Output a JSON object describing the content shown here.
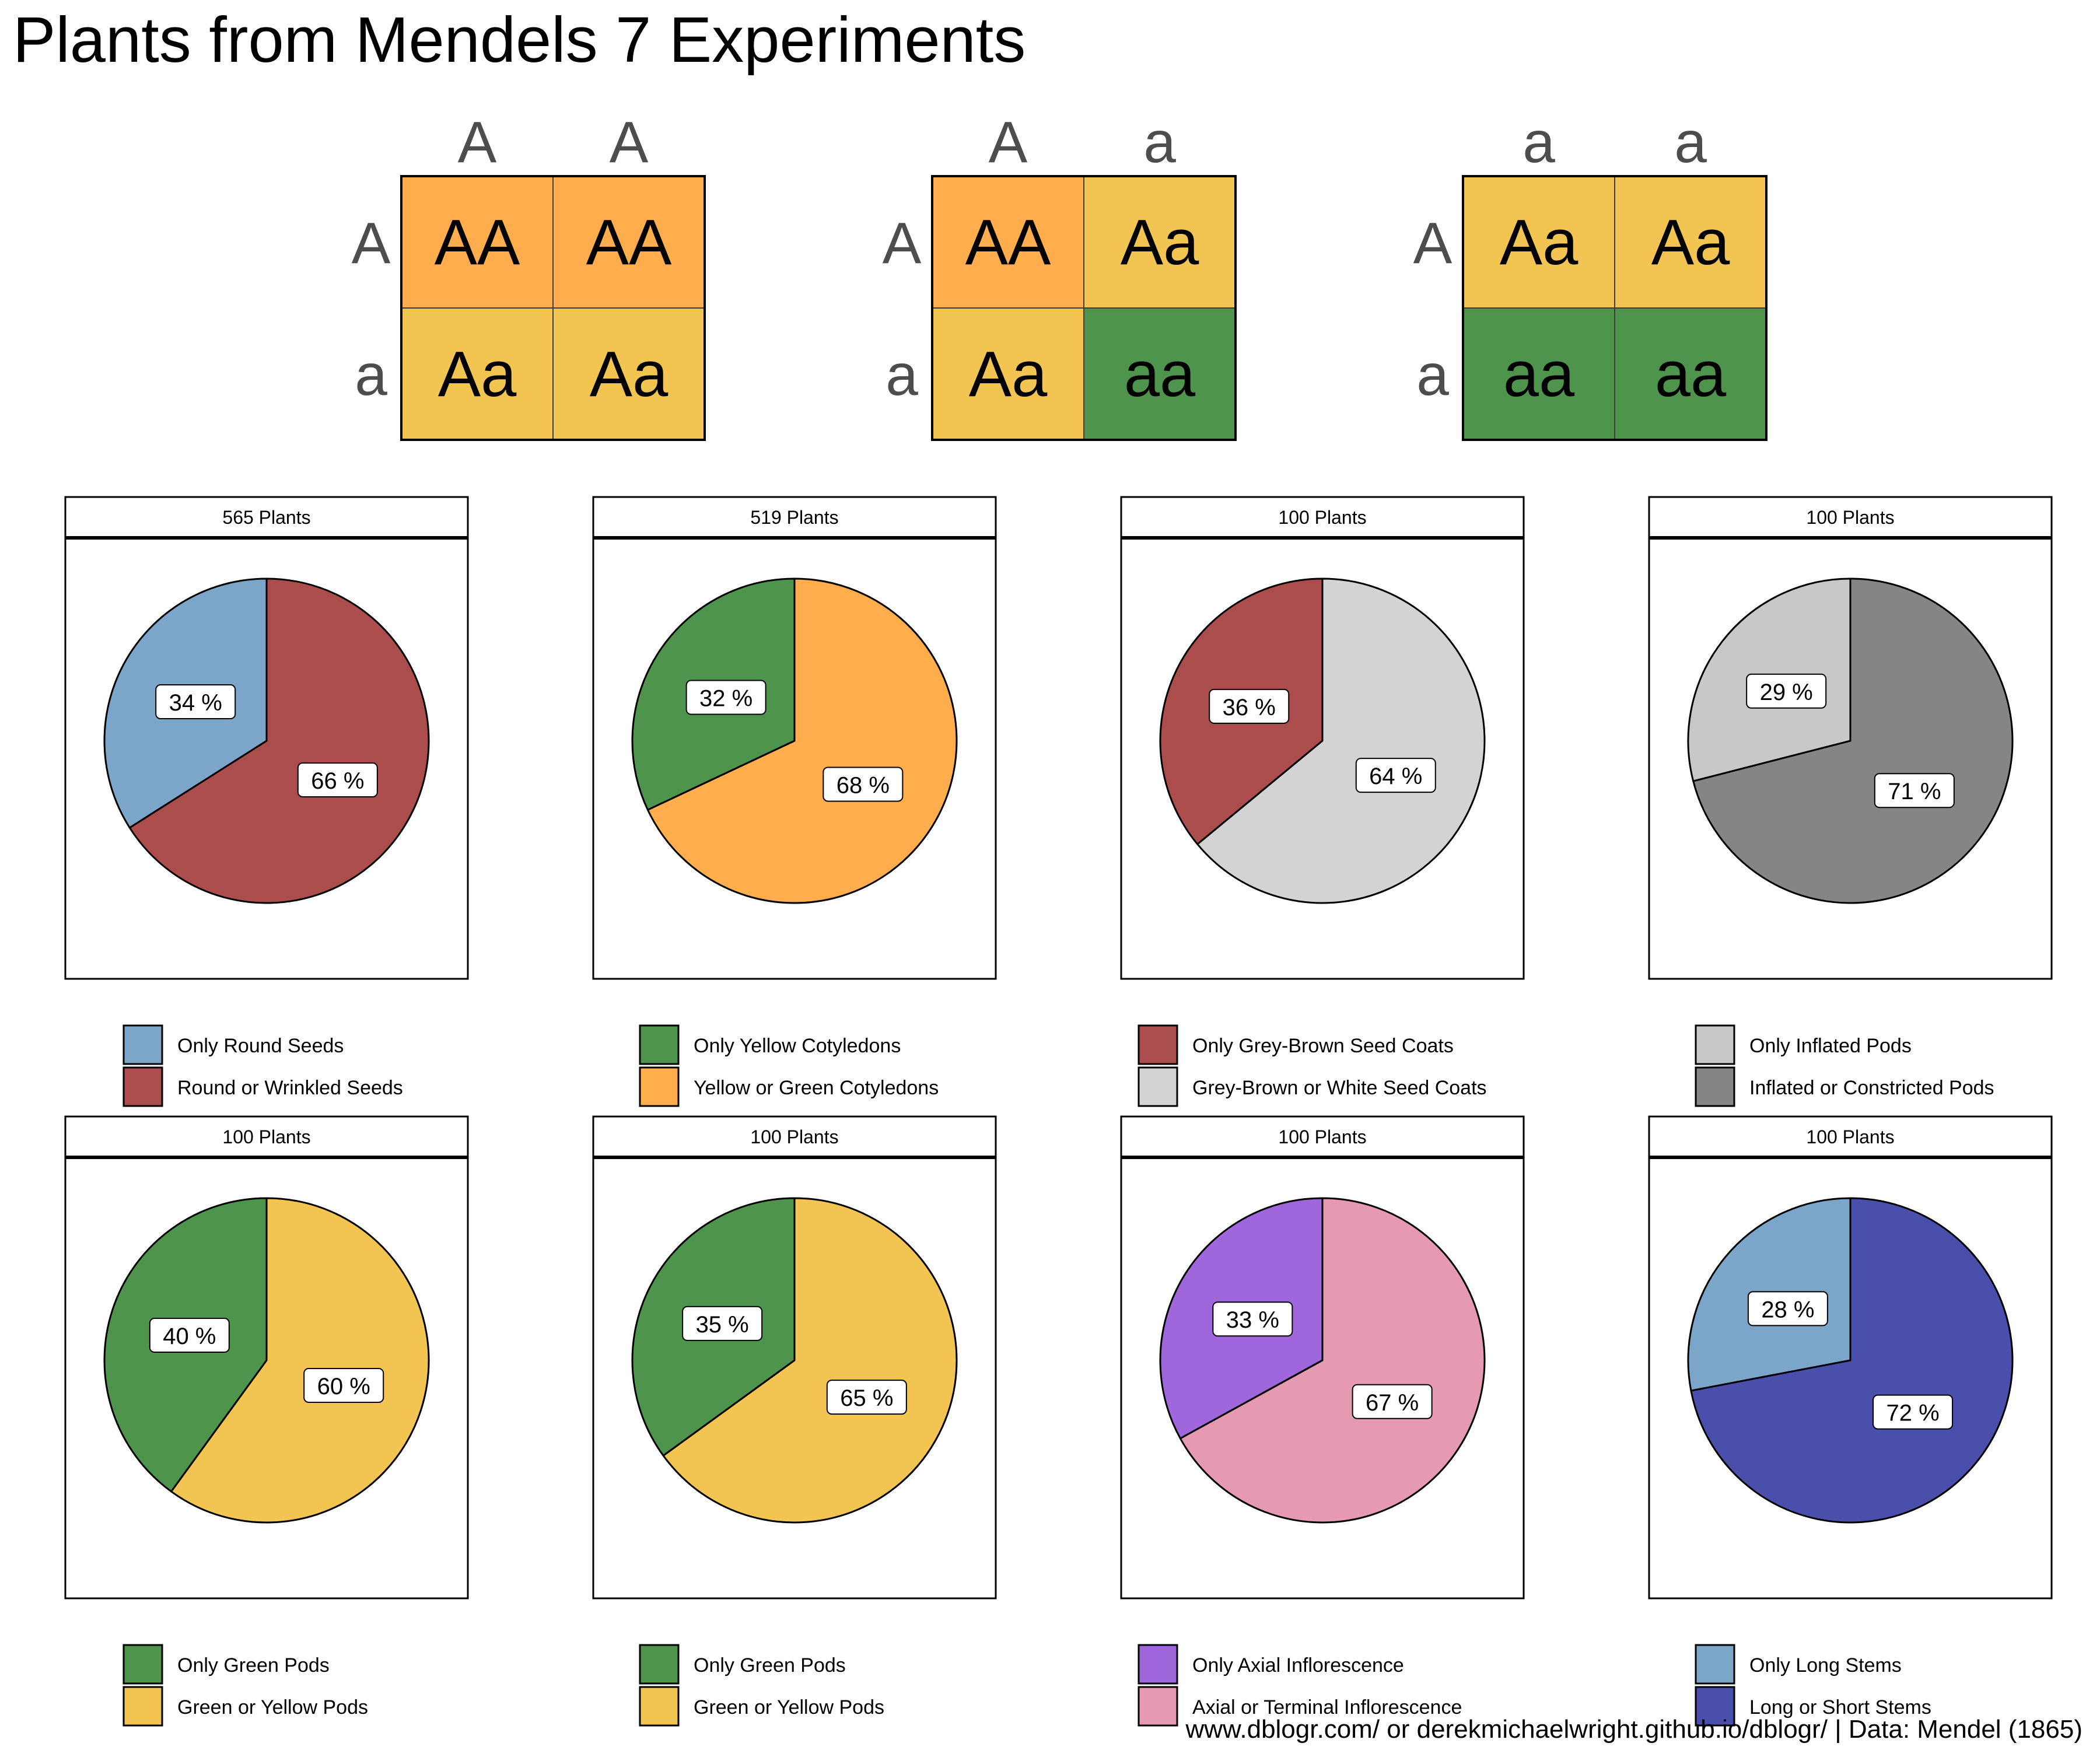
{
  "title": "Plants from Mendels 7 Experiments",
  "footer": "www.dblogr.com/ or derekmichaelwright.github.io/dblogr/ | Data: Mendel (1865)",
  "colors": {
    "dominant": "#ffad4d",
    "hetero": "#f2c553",
    "recessive": "#4e944d",
    "text": "#000000",
    "allele_text": "#4d4d4d"
  },
  "punnett_squares": [
    {
      "top": [
        "A",
        "A"
      ],
      "side": [
        "A",
        "a"
      ],
      "cells": [
        [
          "AA",
          "AA"
        ],
        [
          "Aa",
          "Aa"
        ]
      ]
    },
    {
      "top": [
        "A",
        "a"
      ],
      "side": [
        "A",
        "a"
      ],
      "cells": [
        [
          "AA",
          "Aa"
        ],
        [
          "Aa",
          "aa"
        ]
      ]
    },
    {
      "top": [
        "a",
        "a"
      ],
      "side": [
        "A",
        "a"
      ],
      "cells": [
        [
          "Aa",
          "Aa"
        ],
        [
          "aa",
          "aa"
        ]
      ]
    }
  ],
  "chart_data": [
    {
      "type": "pie",
      "title": "565 Plants",
      "values": [
        34,
        66
      ],
      "labels": [
        "34 %",
        "66 %"
      ],
      "series": [
        {
          "name": "Only Round Seeds",
          "color": "#7ba6c9"
        },
        {
          "name": "Round or Wrinkled Seeds",
          "color": "#ab4c4d"
        }
      ]
    },
    {
      "type": "pie",
      "title": "519 Plants",
      "values": [
        32,
        68
      ],
      "labels": [
        "32 %",
        "68 %"
      ],
      "series": [
        {
          "name": "Only Yellow Cotyledons",
          "color": "#4e944d"
        },
        {
          "name": "Yellow or Green Cotyledons",
          "color": "#ffad4d"
        }
      ]
    },
    {
      "type": "pie",
      "title": "100 Plants",
      "values": [
        36,
        64
      ],
      "labels": [
        "36 %",
        "64 %"
      ],
      "series": [
        {
          "name": "Only Grey-Brown Seed Coats",
          "color": "#ab4c4d"
        },
        {
          "name": "Grey-Brown or White Seed Coats",
          "color": "#d3d3d3"
        }
      ]
    },
    {
      "type": "pie",
      "title": "100 Plants",
      "values": [
        29,
        71
      ],
      "labels": [
        "29 %",
        "71 %"
      ],
      "series": [
        {
          "name": "Only Inflated Pods",
          "color": "#c8c8c8"
        },
        {
          "name": "Inflated or Constricted Pods",
          "color": "#858585"
        }
      ]
    },
    {
      "type": "pie",
      "title": "100 Plants",
      "values": [
        40,
        60
      ],
      "labels": [
        "40 %",
        "60 %"
      ],
      "series": [
        {
          "name": "Only Green Pods",
          "color": "#4e944d"
        },
        {
          "name": "Green or Yellow Pods",
          "color": "#f2c553"
        }
      ]
    },
    {
      "type": "pie",
      "title": "100 Plants",
      "values": [
        35,
        65
      ],
      "labels": [
        "35 %",
        "65 %"
      ],
      "series": [
        {
          "name": "Only Green Pods",
          "color": "#4e944d"
        },
        {
          "name": "Green or Yellow Pods",
          "color": "#f2c553"
        }
      ]
    },
    {
      "type": "pie",
      "title": "100 Plants",
      "values": [
        33,
        67
      ],
      "labels": [
        "33 %",
        "67 %"
      ],
      "series": [
        {
          "name": "Only Axial Inflorescence",
          "color": "#a066db"
        },
        {
          "name": "Axial or Terminal Inflorescence",
          "color": "#e59ab1"
        }
      ]
    },
    {
      "type": "pie",
      "title": "100 Plants",
      "values": [
        28,
        72
      ],
      "labels": [
        "28 %",
        "72 %"
      ],
      "series": [
        {
          "name": "Only Long Stems",
          "color": "#7ba6c9"
        },
        {
          "name": "Long or Short Stems",
          "color": "#4a4fab"
        }
      ]
    }
  ]
}
